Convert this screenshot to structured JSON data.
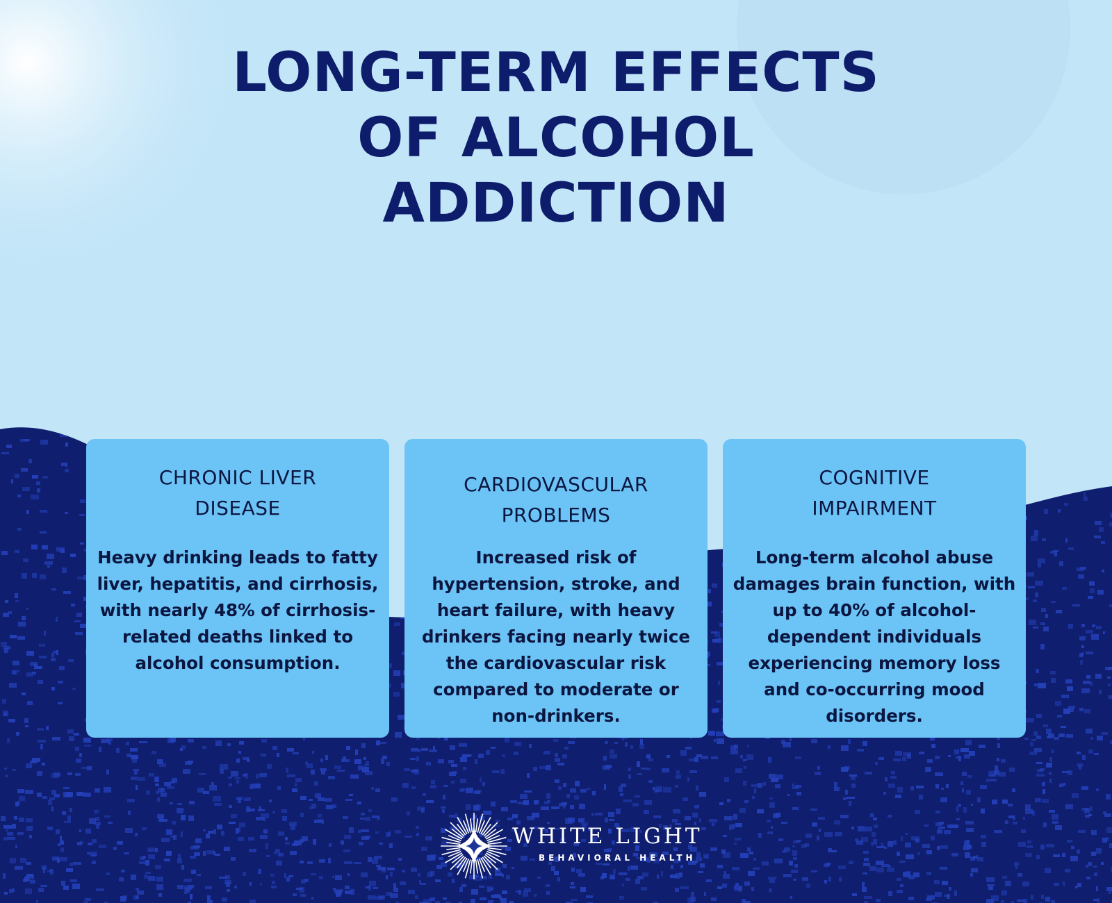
{
  "title_lines": [
    "LONG-TERM EFFECTS",
    "OF ALCOHOL",
    "ADDICTION"
  ],
  "cards": [
    {
      "heading": [
        "CHRONIC LIVER",
        "DISEASE"
      ],
      "body": "Heavy drinking leads to fatty liver, hepatitis, and cirrhosis, with nearly 48% of cirrhosis-related deaths linked to alcohol consumption."
    },
    {
      "heading": [
        "CARDIOVASCULAR",
        "PROBLEMS"
      ],
      "body": "Increased risk of hypertension, stroke, and heart failure, with heavy drinkers facing nearly twice the cardiovascular risk compared to moderate or non-drinkers."
    },
    {
      "heading": [
        "COGNITIVE",
        "IMPAIRMENT"
      ],
      "body": "Long-term alcohol abuse damages brain function, with up to 40% of alcohol-dependent individuals experiencing memory loss and co-occurring mood disorders."
    }
  ],
  "logo": {
    "name": "WHITE LIGHT",
    "tagline": "BEHAVIORAL HEALTH",
    "icon": "starburst-icon"
  },
  "colors": {
    "background": "#c2e5f8",
    "wave": "#0f1e6e",
    "texture": "#2440b8",
    "card": "#6cc3f6",
    "title": "#0d1c6b"
  }
}
